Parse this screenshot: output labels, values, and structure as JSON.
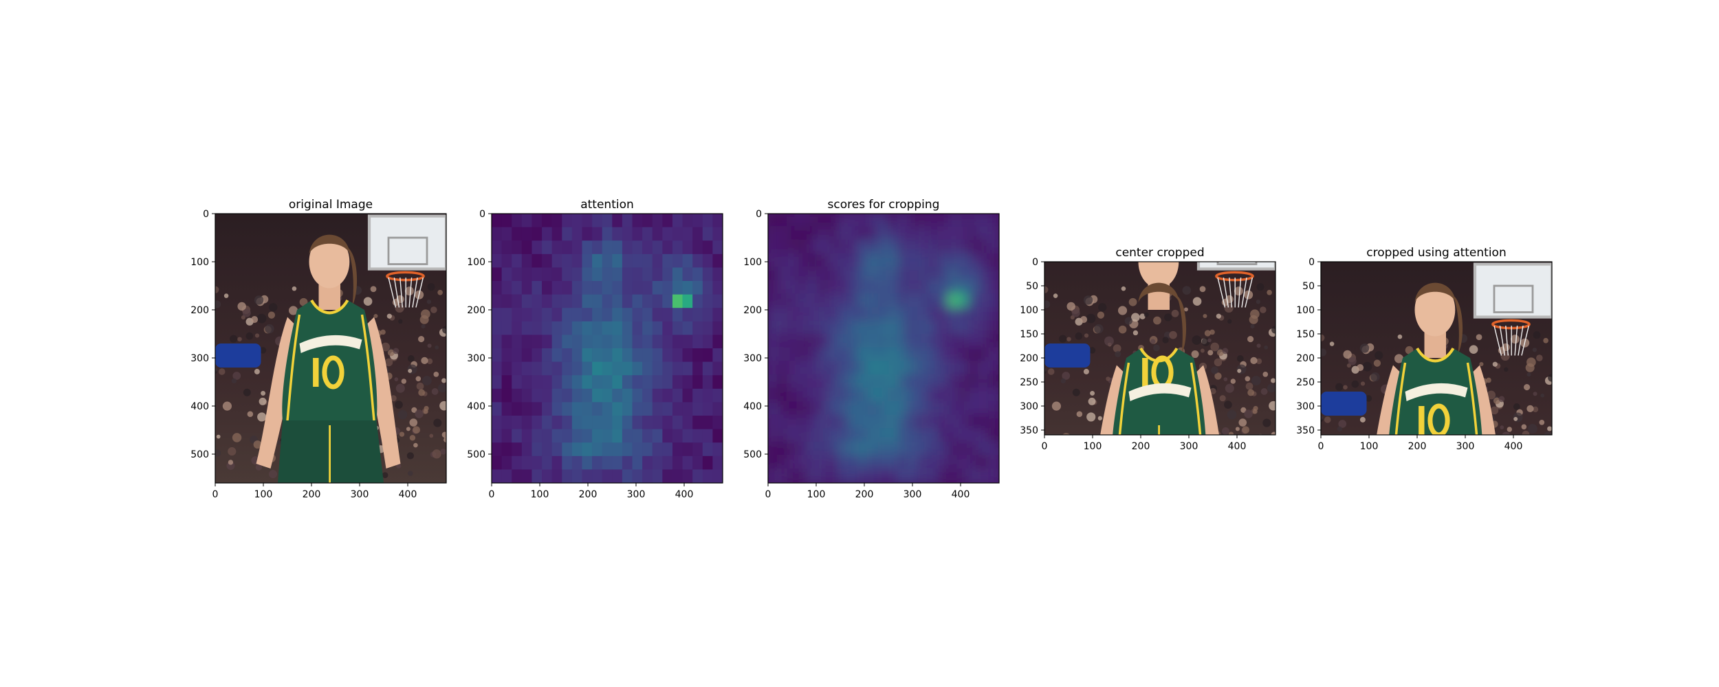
{
  "chart_data": [
    {
      "type": "image",
      "title": "original Image",
      "content": "photo",
      "x_ticks": [
        0,
        100,
        200,
        300,
        400
      ],
      "y_ticks": [
        0,
        100,
        200,
        300,
        400,
        500
      ],
      "xlim": [
        0,
        480
      ],
      "ylim": [
        560,
        0
      ],
      "colors": {
        "background": "#3a2a2c",
        "jersey": "#1f5a43",
        "accent": "#f2d23a"
      }
    },
    {
      "type": "heatmap",
      "title": "attention",
      "colormap": "viridis",
      "grid": [
        20,
        23
      ],
      "x_ticks": [
        0,
        100,
        200,
        300,
        400
      ],
      "y_ticks": [
        0,
        100,
        200,
        300,
        400,
        500
      ],
      "xlim": [
        0,
        480
      ],
      "ylim": [
        560,
        0
      ],
      "peak": {
        "x": 395,
        "y": 180
      }
    },
    {
      "type": "heatmap",
      "title": "scores for cropping",
      "colormap": "viridis",
      "smoothed": true,
      "x_ticks": [
        0,
        100,
        200,
        300,
        400
      ],
      "y_ticks": [
        0,
        100,
        200,
        300,
        400,
        500
      ],
      "xlim": [
        0,
        480
      ],
      "ylim": [
        560,
        0
      ],
      "peak": {
        "x": 395,
        "y": 180
      }
    },
    {
      "type": "image",
      "title": "center cropped",
      "content": "photo",
      "x_ticks": [
        0,
        100,
        200,
        300,
        400
      ],
      "y_ticks": [
        0,
        50,
        100,
        150,
        200,
        250,
        300,
        350
      ],
      "xlim": [
        0,
        480
      ],
      "ylim": [
        360,
        0
      ],
      "crop_from_y": 100
    },
    {
      "type": "image",
      "title": "cropped using attention",
      "content": "photo",
      "x_ticks": [
        0,
        100,
        200,
        300,
        400
      ],
      "y_ticks": [
        0,
        50,
        100,
        150,
        200,
        250,
        300,
        350
      ],
      "xlim": [
        0,
        480
      ],
      "ylim": [
        360,
        0
      ],
      "crop_from_y": 0
    }
  ]
}
